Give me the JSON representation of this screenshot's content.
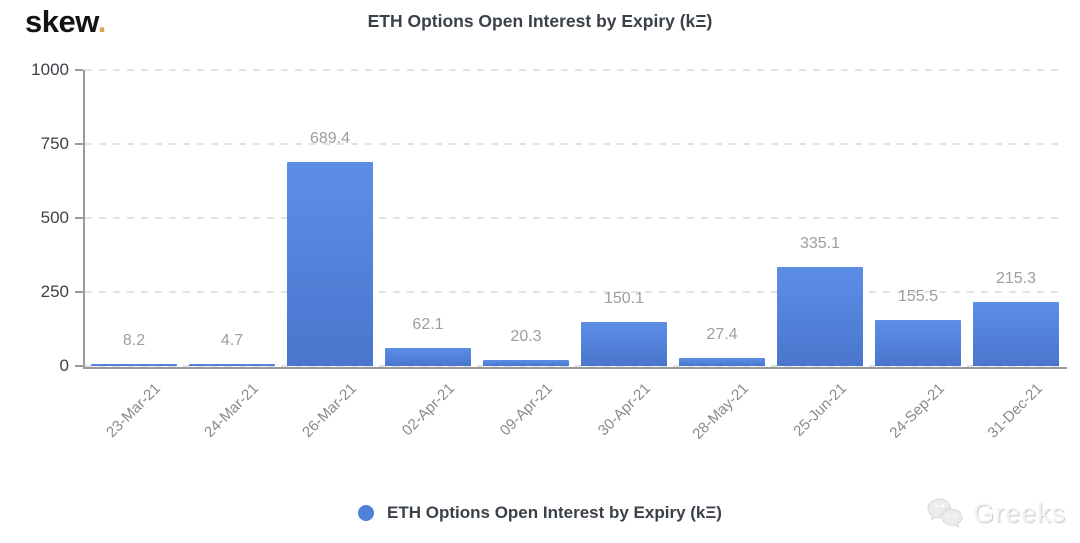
{
  "logo": {
    "text": "skew",
    "dot": "."
  },
  "legend": {
    "label": "ETH Options Open Interest by Expiry (kΞ)"
  },
  "watermark": {
    "text": "Greeks",
    "icon": "wechat-icon"
  },
  "colors": {
    "bar_top": "#5d8ee6",
    "bar_bottom": "#4a76cd",
    "legend_dot": "#4f80da",
    "grid": "#e3e3e3",
    "axis": "#9a9a9a",
    "title_text": "#3b4149",
    "y_label": "#3d4248",
    "x_label": "#8a8a8a",
    "value_label": "#9b9ea3",
    "logo_text": "#141414",
    "logo_dot": "#d2a457"
  },
  "chart_data": {
    "type": "bar",
    "title": "ETH Options Open Interest by Expiry (kΞ)",
    "categories": [
      "23-Mar-21",
      "24-Mar-21",
      "26-Mar-21",
      "02-Apr-21",
      "09-Apr-21",
      "30-Apr-21",
      "28-May-21",
      "25-Jun-21",
      "24-Sep-21",
      "31-Dec-21"
    ],
    "values": [
      8.2,
      4.7,
      689.4,
      62.1,
      20.3,
      150.1,
      27.4,
      335.1,
      155.5,
      215.3
    ],
    "xlabel": "",
    "ylabel": "",
    "ylim": [
      0,
      1000
    ],
    "yticks": [
      0,
      250,
      500,
      750,
      1000
    ],
    "grid": "horizontal-dashed",
    "legend_entries": [
      "ETH Options Open Interest by Expiry (kΞ)"
    ],
    "legend_position": "bottom-center",
    "value_labels_shown": true
  }
}
